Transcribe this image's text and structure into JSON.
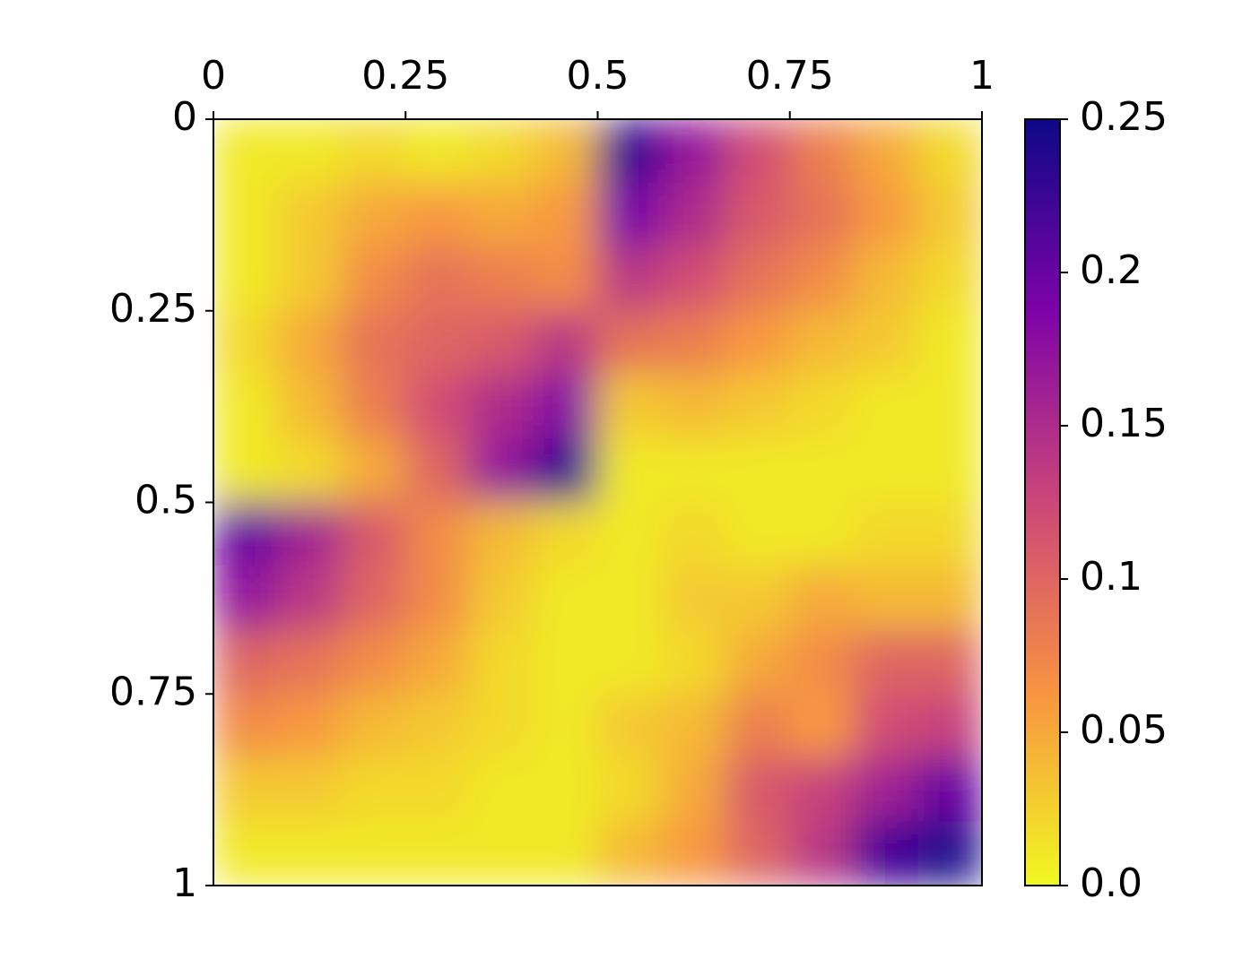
{
  "chart_data": {
    "type": "heatmap",
    "colormap": "plasma_r",
    "xlim": [
      0,
      1
    ],
    "ylim": [
      0,
      1
    ],
    "xticks": [
      0,
      0.25,
      0.5,
      0.75,
      1
    ],
    "yticks": [
      0,
      0.25,
      0.5,
      0.75,
      1
    ],
    "clim": [
      0,
      0.25
    ],
    "cticks": [
      {
        "value": 0,
        "label": "0.0"
      },
      0.05,
      0.1,
      0.15,
      0.2,
      0.25
    ],
    "z": [
      [
        0.01,
        0.01,
        0.02,
        0.01,
        0.02,
        0.04,
        0.23,
        0.17,
        0.12,
        0.08,
        0.05,
        0.02
      ],
      [
        0.01,
        0.03,
        0.05,
        0.06,
        0.05,
        0.06,
        0.19,
        0.15,
        0.11,
        0.09,
        0.06,
        0.03
      ],
      [
        0.01,
        0.03,
        0.07,
        0.09,
        0.08,
        0.07,
        0.14,
        0.12,
        0.09,
        0.07,
        0.04,
        0.02
      ],
      [
        0.02,
        0.05,
        0.09,
        0.1,
        0.11,
        0.14,
        0.09,
        0.08,
        0.06,
        0.04,
        0.03,
        0.01
      ],
      [
        0.01,
        0.04,
        0.08,
        0.12,
        0.15,
        0.18,
        0.03,
        0.04,
        0.03,
        0.02,
        0.01,
        0.01
      ],
      [
        0.01,
        0.02,
        0.05,
        0.1,
        0.17,
        0.23,
        0.01,
        0.01,
        0.01,
        0.01,
        0.01,
        0.01
      ],
      [
        0.2,
        0.16,
        0.11,
        0.07,
        0.04,
        0.02,
        0.01,
        0.02,
        0.01,
        0.01,
        0.02,
        0.02
      ],
      [
        0.17,
        0.14,
        0.1,
        0.07,
        0.03,
        0.01,
        0.01,
        0.03,
        0.03,
        0.05,
        0.04,
        0.04
      ],
      [
        0.1,
        0.09,
        0.07,
        0.05,
        0.02,
        0.01,
        0.01,
        0.02,
        0.05,
        0.07,
        0.1,
        0.1
      ],
      [
        0.07,
        0.06,
        0.04,
        0.03,
        0.02,
        0.01,
        0.03,
        0.04,
        0.08,
        0.06,
        0.12,
        0.13
      ],
      [
        0.03,
        0.03,
        0.02,
        0.02,
        0.01,
        0.01,
        0.02,
        0.05,
        0.11,
        0.13,
        0.16,
        0.2
      ],
      [
        0.01,
        0.01,
        0.01,
        0.01,
        0.01,
        0.01,
        0.04,
        0.06,
        0.1,
        0.14,
        0.22,
        0.24
      ]
    ]
  }
}
